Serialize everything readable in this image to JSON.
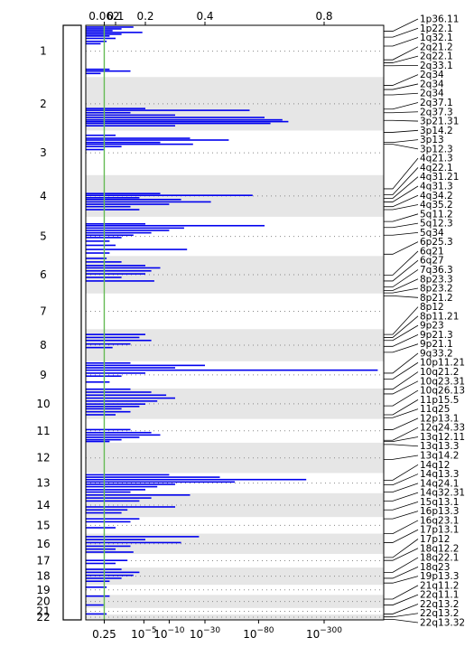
{
  "chart_data": {
    "type": "bar",
    "orientation": "horizontal",
    "colors": {
      "bars": "#0000ee",
      "threshold": "#66bb55",
      "band_shade": "#e6e6e6",
      "dots": "#888888",
      "frame": "#000000"
    },
    "top_axis": {
      "ticks": [
        {
          "label": "0.062",
          "pos": 0.062
        },
        {
          "label": "0.1",
          "pos": 0.1
        },
        {
          "label": "0.2",
          "pos": 0.2
        },
        {
          "label": "0.4",
          "pos": 0.4
        },
        {
          "label": "0.8",
          "pos": 0.8
        }
      ]
    },
    "bottom_axis": {
      "ticks": [
        {
          "label": "0.25",
          "pos": 0.062,
          "exp": null
        },
        {
          "label": "10",
          "pos": 0.195,
          "exp": "−5"
        },
        {
          "label": "10",
          "pos": 0.28,
          "exp": "−10"
        },
        {
          "label": "10",
          "pos": 0.4,
          "exp": "−30"
        },
        {
          "label": "10",
          "pos": 0.58,
          "exp": "−80"
        },
        {
          "label": "10",
          "pos": 0.8,
          "exp": "−300"
        }
      ]
    },
    "threshold": 0.062,
    "chromosomes": [
      {
        "label": "1",
        "start": 0.0,
        "end": 0.087
      },
      {
        "label": "2",
        "start": 0.087,
        "end": 0.177
      },
      {
        "label": "3",
        "start": 0.177,
        "end": 0.252
      },
      {
        "label": "4",
        "start": 0.252,
        "end": 0.322
      },
      {
        "label": "5",
        "start": 0.322,
        "end": 0.388
      },
      {
        "label": "6",
        "start": 0.388,
        "end": 0.451
      },
      {
        "label": "7",
        "start": 0.451,
        "end": 0.511
      },
      {
        "label": "8",
        "start": 0.511,
        "end": 0.565
      },
      {
        "label": "9",
        "start": 0.565,
        "end": 0.611
      },
      {
        "label": "10",
        "start": 0.611,
        "end": 0.662
      },
      {
        "label": "11",
        "start": 0.662,
        "end": 0.702
      },
      {
        "label": "12",
        "start": 0.702,
        "end": 0.753
      },
      {
        "label": "13",
        "start": 0.753,
        "end": 0.787
      },
      {
        "label": "14",
        "start": 0.787,
        "end": 0.827
      },
      {
        "label": "15",
        "start": 0.827,
        "end": 0.855
      },
      {
        "label": "16",
        "start": 0.855,
        "end": 0.889
      },
      {
        "label": "17",
        "start": 0.889,
        "end": 0.912
      },
      {
        "label": "18",
        "start": 0.912,
        "end": 0.941
      },
      {
        "label": "19",
        "start": 0.941,
        "end": 0.958
      },
      {
        "label": "20",
        "start": 0.958,
        "end": 0.98
      },
      {
        "label": "21",
        "start": 0.98,
        "end": 0.991
      },
      {
        "label": "22",
        "start": 0.991,
        "end": 1.0
      }
    ],
    "bands": [
      {
        "label": "1p36.11",
        "pos": 0.01
      },
      {
        "label": "1p22.1",
        "pos": 0.02
      },
      {
        "label": "1q32.1",
        "pos": 0.035
      },
      {
        "label": "2q21.2",
        "pos": 0.058
      },
      {
        "label": "2q22.1",
        "pos": 0.063
      },
      {
        "label": "2q33.1",
        "pos": 0.068
      },
      {
        "label": "2q34",
        "pos": 0.101
      },
      {
        "label": "2q34",
        "pos": 0.108
      },
      {
        "label": "2q34",
        "pos": 0.117
      },
      {
        "label": "2q37.1",
        "pos": 0.141
      },
      {
        "label": "2q37.3",
        "pos": 0.147
      },
      {
        "label": "3p21.31",
        "pos": 0.16
      },
      {
        "label": "3p14.2",
        "pos": 0.18
      },
      {
        "label": "3p13",
        "pos": 0.197
      },
      {
        "label": "3p12.3",
        "pos": 0.2
      },
      {
        "label": "4q21.3",
        "pos": 0.275
      },
      {
        "label": "4q22.1",
        "pos": 0.285
      },
      {
        "label": "4q31.21",
        "pos": 0.291
      },
      {
        "label": "4q31.3",
        "pos": 0.297
      },
      {
        "label": "4q34.2",
        "pos": 0.305
      },
      {
        "label": "4q35.2",
        "pos": 0.31
      },
      {
        "label": "5q11.2",
        "pos": 0.33
      },
      {
        "label": "5q12.3",
        "pos": 0.34
      },
      {
        "label": "5q34",
        "pos": 0.353
      },
      {
        "label": "6p25.3",
        "pos": 0.385
      },
      {
        "label": "6q21",
        "pos": 0.42
      },
      {
        "label": "6q27",
        "pos": 0.43
      },
      {
        "label": "7q36.3",
        "pos": 0.44
      },
      {
        "label": "8p23.3",
        "pos": 0.446
      },
      {
        "label": "8p23.2",
        "pos": 0.45
      },
      {
        "label": "8p21.2",
        "pos": 0.455
      },
      {
        "label": "8p12",
        "pos": 0.52
      },
      {
        "label": "8p11.21",
        "pos": 0.525
      },
      {
        "label": "9p23",
        "pos": 0.53
      },
      {
        "label": "9p21.3",
        "pos": 0.54
      },
      {
        "label": "9p21.1",
        "pos": 0.55
      },
      {
        "label": "9q33.2",
        "pos": 0.585
      },
      {
        "label": "10p11.21",
        "pos": 0.595
      },
      {
        "label": "10q21.2",
        "pos": 0.612
      },
      {
        "label": "10q23.31",
        "pos": 0.62
      },
      {
        "label": "10q26.13",
        "pos": 0.64
      },
      {
        "label": "11p15.5",
        "pos": 0.655
      },
      {
        "label": "11q25",
        "pos": 0.66
      },
      {
        "label": "12p13.1",
        "pos": 0.68
      },
      {
        "label": "12q24.33",
        "pos": 0.698
      },
      {
        "label": "13q12.11",
        "pos": 0.7
      },
      {
        "label": "13q13.3",
        "pos": 0.705
      },
      {
        "label": "13q14.2",
        "pos": 0.73
      },
      {
        "label": "14q12",
        "pos": 0.765
      },
      {
        "label": "14q13.3",
        "pos": 0.773
      },
      {
        "label": "14q24.1",
        "pos": 0.785
      },
      {
        "label": "14q32.31",
        "pos": 0.8
      },
      {
        "label": "15q13.1",
        "pos": 0.815
      },
      {
        "label": "16p13.3",
        "pos": 0.83
      },
      {
        "label": "16q23.1",
        "pos": 0.855
      },
      {
        "label": "17p13.1",
        "pos": 0.87
      },
      {
        "label": "17p12",
        "pos": 0.895
      },
      {
        "label": "18q12.2",
        "pos": 0.9
      },
      {
        "label": "18q22.1",
        "pos": 0.92
      },
      {
        "label": "18q23",
        "pos": 0.93
      },
      {
        "label": "19p13.3",
        "pos": 0.938
      },
      {
        "label": "21q11.2",
        "pos": 0.965
      },
      {
        "label": "22q11.1",
        "pos": 0.975
      },
      {
        "label": "22q13.2",
        "pos": 0.99
      },
      {
        "label": "22q13.2",
        "pos": 0.995
      },
      {
        "label": "22q13.32",
        "pos": 0.999
      }
    ],
    "signals": [
      {
        "pos": 0.003,
        "value": 0.16
      },
      {
        "pos": 0.006,
        "value": 0.12
      },
      {
        "pos": 0.009,
        "value": 0.09
      },
      {
        "pos": 0.012,
        "value": 0.19
      },
      {
        "pos": 0.015,
        "value": 0.12
      },
      {
        "pos": 0.018,
        "value": 0.08
      },
      {
        "pos": 0.022,
        "value": 0.1
      },
      {
        "pos": 0.027,
        "value": 0.07
      },
      {
        "pos": 0.031,
        "value": 0.05
      },
      {
        "pos": 0.074,
        "value": 0.08
      },
      {
        "pos": 0.077,
        "value": 0.15
      },
      {
        "pos": 0.081,
        "value": 0.05
      },
      {
        "pos": 0.14,
        "value": 0.2
      },
      {
        "pos": 0.143,
        "value": 0.55
      },
      {
        "pos": 0.147,
        "value": 0.15
      },
      {
        "pos": 0.151,
        "value": 0.3
      },
      {
        "pos": 0.155,
        "value": 0.6
      },
      {
        "pos": 0.159,
        "value": 0.66
      },
      {
        "pos": 0.162,
        "value": 0.68
      },
      {
        "pos": 0.165,
        "value": 0.62
      },
      {
        "pos": 0.169,
        "value": 0.3
      },
      {
        "pos": 0.185,
        "value": 0.1
      },
      {
        "pos": 0.19,
        "value": 0.35
      },
      {
        "pos": 0.193,
        "value": 0.48
      },
      {
        "pos": 0.197,
        "value": 0.25
      },
      {
        "pos": 0.2,
        "value": 0.36
      },
      {
        "pos": 0.204,
        "value": 0.12
      },
      {
        "pos": 0.209,
        "value": 0.06
      },
      {
        "pos": 0.283,
        "value": 0.25
      },
      {
        "pos": 0.286,
        "value": 0.56
      },
      {
        "pos": 0.29,
        "value": 0.18
      },
      {
        "pos": 0.293,
        "value": 0.32
      },
      {
        "pos": 0.297,
        "value": 0.42
      },
      {
        "pos": 0.301,
        "value": 0.28
      },
      {
        "pos": 0.305,
        "value": 0.15
      },
      {
        "pos": 0.31,
        "value": 0.18
      },
      {
        "pos": 0.334,
        "value": 0.2
      },
      {
        "pos": 0.337,
        "value": 0.6
      },
      {
        "pos": 0.341,
        "value": 0.33
      },
      {
        "pos": 0.345,
        "value": 0.28
      },
      {
        "pos": 0.349,
        "value": 0.22
      },
      {
        "pos": 0.353,
        "value": 0.16
      },
      {
        "pos": 0.357,
        "value": 0.12
      },
      {
        "pos": 0.363,
        "value": 0.08
      },
      {
        "pos": 0.37,
        "value": 0.1
      },
      {
        "pos": 0.377,
        "value": 0.34
      },
      {
        "pos": 0.383,
        "value": 0.08
      },
      {
        "pos": 0.392,
        "value": 0.07
      },
      {
        "pos": 0.398,
        "value": 0.12
      },
      {
        "pos": 0.404,
        "value": 0.2
      },
      {
        "pos": 0.408,
        "value": 0.25
      },
      {
        "pos": 0.413,
        "value": 0.22
      },
      {
        "pos": 0.418,
        "value": 0.2
      },
      {
        "pos": 0.424,
        "value": 0.12
      },
      {
        "pos": 0.43,
        "value": 0.23
      },
      {
        "pos": 0.52,
        "value": 0.2
      },
      {
        "pos": 0.525,
        "value": 0.18
      },
      {
        "pos": 0.53,
        "value": 0.22
      },
      {
        "pos": 0.536,
        "value": 0.15
      },
      {
        "pos": 0.542,
        "value": 0.09
      },
      {
        "pos": 0.568,
        "value": 0.15
      },
      {
        "pos": 0.572,
        "value": 0.4
      },
      {
        "pos": 0.576,
        "value": 0.3
      },
      {
        "pos": 0.58,
        "value": 0.98
      },
      {
        "pos": 0.585,
        "value": 0.2
      },
      {
        "pos": 0.59,
        "value": 0.12
      },
      {
        "pos": 0.6,
        "value": 0.08
      },
      {
        "pos": 0.612,
        "value": 0.15
      },
      {
        "pos": 0.617,
        "value": 0.22
      },
      {
        "pos": 0.622,
        "value": 0.27
      },
      {
        "pos": 0.627,
        "value": 0.3
      },
      {
        "pos": 0.632,
        "value": 0.24
      },
      {
        "pos": 0.637,
        "value": 0.2
      },
      {
        "pos": 0.641,
        "value": 0.18
      },
      {
        "pos": 0.645,
        "value": 0.12
      },
      {
        "pos": 0.65,
        "value": 0.15
      },
      {
        "pos": 0.655,
        "value": 0.1
      },
      {
        "pos": 0.68,
        "value": 0.15
      },
      {
        "pos": 0.685,
        "value": 0.22
      },
      {
        "pos": 0.689,
        "value": 0.25
      },
      {
        "pos": 0.693,
        "value": 0.18
      },
      {
        "pos": 0.697,
        "value": 0.12
      },
      {
        "pos": 0.7,
        "value": 0.08
      },
      {
        "pos": 0.756,
        "value": 0.28
      },
      {
        "pos": 0.76,
        "value": 0.45
      },
      {
        "pos": 0.764,
        "value": 0.74
      },
      {
        "pos": 0.768,
        "value": 0.5
      },
      {
        "pos": 0.772,
        "value": 0.3
      },
      {
        "pos": 0.776,
        "value": 0.24
      },
      {
        "pos": 0.781,
        "value": 0.2
      },
      {
        "pos": 0.785,
        "value": 0.15
      },
      {
        "pos": 0.79,
        "value": 0.35
      },
      {
        "pos": 0.795,
        "value": 0.22
      },
      {
        "pos": 0.8,
        "value": 0.18
      },
      {
        "pos": 0.81,
        "value": 0.3
      },
      {
        "pos": 0.815,
        "value": 0.14
      },
      {
        "pos": 0.82,
        "value": 0.12
      },
      {
        "pos": 0.83,
        "value": 0.18
      },
      {
        "pos": 0.835,
        "value": 0.15
      },
      {
        "pos": 0.845,
        "value": 0.1
      },
      {
        "pos": 0.86,
        "value": 0.38
      },
      {
        "pos": 0.865,
        "value": 0.2
      },
      {
        "pos": 0.87,
        "value": 0.32
      },
      {
        "pos": 0.876,
        "value": 0.15
      },
      {
        "pos": 0.881,
        "value": 0.1
      },
      {
        "pos": 0.886,
        "value": 0.16
      },
      {
        "pos": 0.9,
        "value": 0.14
      },
      {
        "pos": 0.905,
        "value": 0.1
      },
      {
        "pos": 0.915,
        "value": 0.12
      },
      {
        "pos": 0.92,
        "value": 0.18
      },
      {
        "pos": 0.925,
        "value": 0.16
      },
      {
        "pos": 0.93,
        "value": 0.12
      },
      {
        "pos": 0.935,
        "value": 0.08
      },
      {
        "pos": 0.945,
        "value": 0.07
      },
      {
        "pos": 0.96,
        "value": 0.08
      },
      {
        "pos": 0.975,
        "value": 0.06
      },
      {
        "pos": 0.99,
        "value": 0.07
      }
    ]
  }
}
